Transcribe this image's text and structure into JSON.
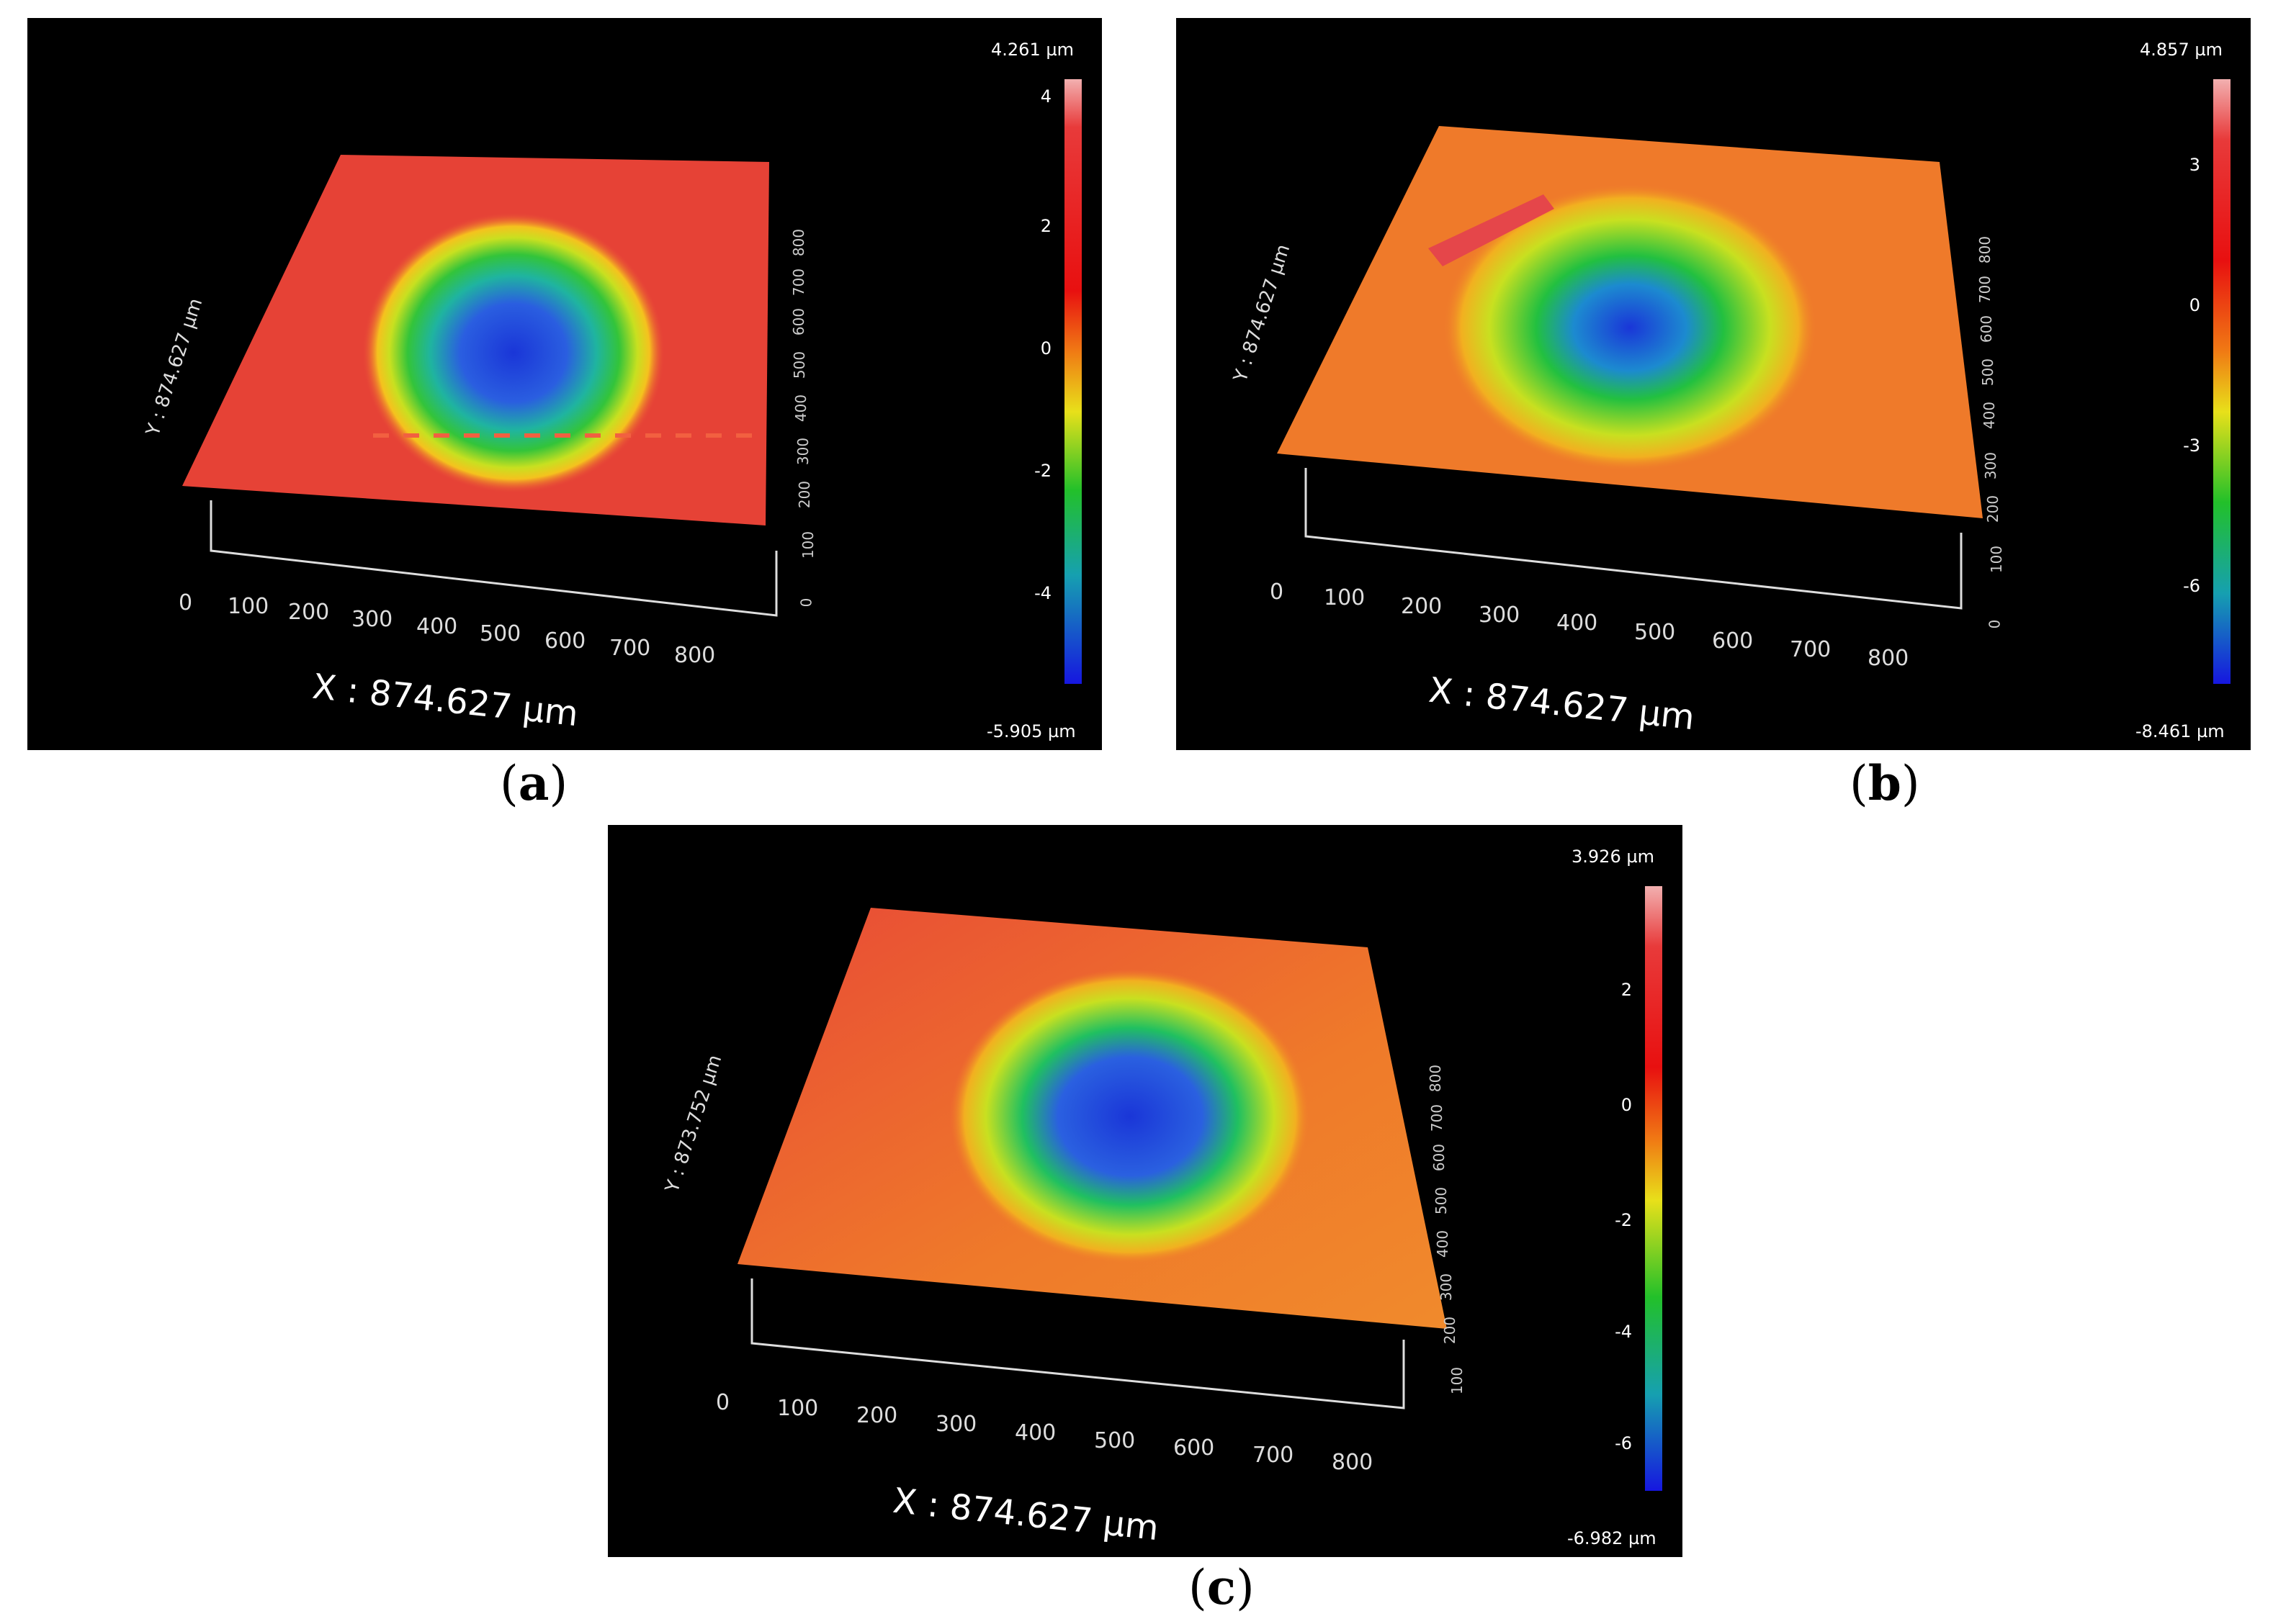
{
  "panels": [
    {
      "caption_letter": "a",
      "colorbar": {
        "max_label": "4.261 µm",
        "min_label": "-5.905 µm",
        "ticks": [
          "4",
          "2",
          "0",
          "-2",
          "-4"
        ]
      },
      "x_axis_label": "X : 874.627 µm",
      "y_axis_label": "Y : 874.627 µm",
      "x_ticks": [
        "0",
        "100",
        "200",
        "300",
        "400",
        "500",
        "600",
        "700",
        "800"
      ],
      "y_ticks": [
        "0",
        "100",
        "200",
        "300",
        "400",
        "500",
        "600",
        "700",
        "800"
      ]
    },
    {
      "caption_letter": "b",
      "colorbar": {
        "max_label": "4.857 µm",
        "min_label": "-8.461 µm",
        "ticks": [
          "3",
          "0",
          "-3",
          "-6"
        ]
      },
      "x_axis_label": "X : 874.627 µm",
      "y_axis_label": "Y : 874.627 µm",
      "x_ticks": [
        "0",
        "100",
        "200",
        "300",
        "400",
        "500",
        "600",
        "700",
        "800"
      ],
      "y_ticks": [
        "0",
        "100",
        "200",
        "300",
        "400",
        "500",
        "600",
        "700",
        "800"
      ]
    },
    {
      "caption_letter": "c",
      "colorbar": {
        "max_label": "3.926 µm",
        "min_label": "-6.982 µm",
        "ticks": [
          "2",
          "0",
          "-2",
          "-4",
          "-6"
        ]
      },
      "x_axis_label": "X : 874.627 µm",
      "y_axis_label": "Y : 873.752 µm",
      "x_ticks": [
        "0",
        "100",
        "200",
        "300",
        "400",
        "500",
        "600",
        "700",
        "800"
      ],
      "y_ticks": [
        "100",
        "200",
        "300",
        "400",
        "500",
        "600",
        "700",
        "800"
      ]
    }
  ],
  "colors": {
    "panel_background": "#000000",
    "surface_high": "#e8403a",
    "surface_mid": "#f07a2a",
    "crater_rim": "#f2e31c",
    "crater_mid": "#2fc043",
    "crater_center": "#1d3fd6"
  }
}
